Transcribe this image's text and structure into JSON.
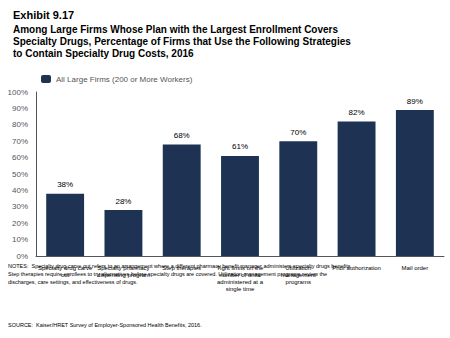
{
  "chart_data": {
    "type": "bar",
    "title": "Exhibit 9.17",
    "subtitle": "Among Large Firms Whose Plan with the Largest Enrollment Covers\nSpecialty Drugs, Percentage of Firms that Use the Following Strategies\nto Contain Specialty Drug Costs, 2016",
    "categories": [
      "Specialty drug carve\nout",
      "Specialty pharmacy\ndispensing program",
      "Step therapies",
      "Tight limits on the\nnumber of units\nadministered at a\nsingle time",
      "Utilization\nmanagement\nprograms",
      "Prior authorization",
      "Mail order"
    ],
    "series": [
      {
        "name": "All Large Firms (200 or More Workers)",
        "color": "#1e3354",
        "values": [
          38,
          28,
          68,
          61,
          70,
          82,
          89
        ],
        "value_labels": [
          "38%",
          "28%",
          "68%",
          "61%",
          "70%",
          "82%",
          "89%"
        ]
      }
    ],
    "data_labels": true,
    "ylim": [
      0,
      100
    ],
    "yticks": [
      {
        "value": 0,
        "label": "0%"
      },
      {
        "value": 10,
        "label": "10%"
      },
      {
        "value": 20,
        "label": "20%"
      },
      {
        "value": 30,
        "label": "30%"
      },
      {
        "value": 40,
        "label": "40%"
      },
      {
        "value": 50,
        "label": "50%"
      },
      {
        "value": 60,
        "label": "60%"
      },
      {
        "value": 70,
        "label": "70%"
      },
      {
        "value": 80,
        "label": "80%"
      },
      {
        "value": 90,
        "label": "90%"
      },
      {
        "value": 100,
        "label": "100%"
      }
    ],
    "grid": false,
    "legend": "upper left",
    "annotations": [
      "NOTES:  Specialty drug carve out refers to an arrangement where a different pharmacy benefit manager administers specialty drugs benefits.\nStep therapies require enrollees to try alternatives before specialty drugs are covered. Utilization management programs review the\ndischarges, care settings, and effectiveness of drugs.",
      "SOURCE:  Kaiser/HRET Survey of Employer-Sponsored Health Benefits, 2016."
    ]
  }
}
